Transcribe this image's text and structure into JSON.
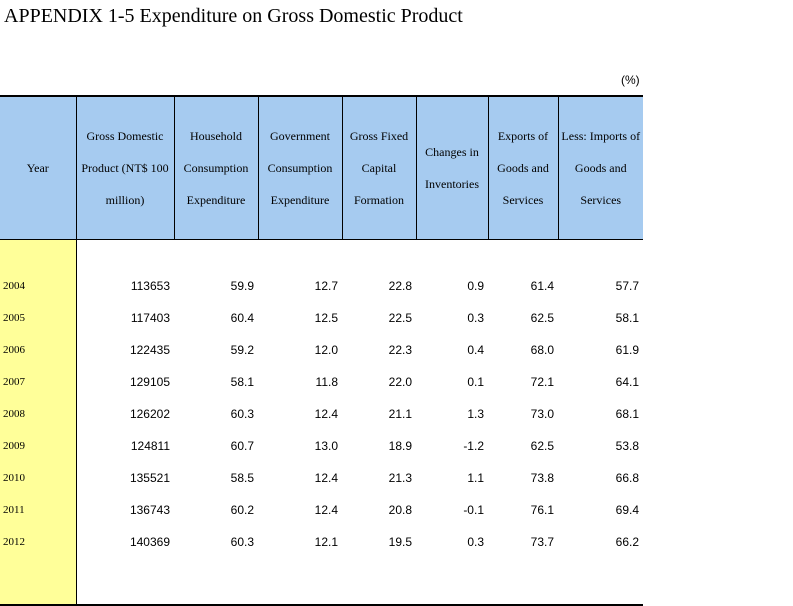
{
  "title": "APPENDIX 1-5 Expenditure on Gross Domestic Product",
  "unit": "(%)",
  "headers": [
    "Year",
    "Gross Domestic Product (NT$ 100 million)",
    "Household Consumption Expenditure",
    "Government Consumption Expenditure",
    "Gross Fixed Capital Formation",
    "Changes in Inventories",
    "Exports of Goods and Services",
    "Less: Imports of Goods and Services"
  ],
  "rows": [
    [
      "2004",
      "113653",
      "59.9",
      "12.7",
      "22.8",
      "0.9",
      "61.4",
      "57.7"
    ],
    [
      "2005",
      "117403",
      "60.4",
      "12.5",
      "22.5",
      "0.3",
      "62.5",
      "58.1"
    ],
    [
      "2006",
      "122435",
      "59.2",
      "12.0",
      "22.3",
      "0.4",
      "68.0",
      "61.9"
    ],
    [
      "2007",
      "129105",
      "58.1",
      "11.8",
      "22.0",
      "0.1",
      "72.1",
      "64.1"
    ],
    [
      "2008",
      "126202",
      "60.3",
      "12.4",
      "21.1",
      "1.3",
      "73.0",
      "68.1"
    ],
    [
      "2009",
      "124811",
      "60.7",
      "13.0",
      "18.9",
      "-1.2",
      "62.5",
      "53.8"
    ],
    [
      "2010",
      "135521",
      "58.5",
      "12.4",
      "21.3",
      "1.1",
      "73.8",
      "66.8"
    ],
    [
      "2011",
      "136743",
      "60.2",
      "12.4",
      "20.8",
      "-0.1",
      "76.1",
      "69.4"
    ],
    [
      "2012",
      "140369",
      "60.3",
      "12.1",
      "19.5",
      "0.3",
      "73.7",
      "66.2"
    ]
  ]
}
